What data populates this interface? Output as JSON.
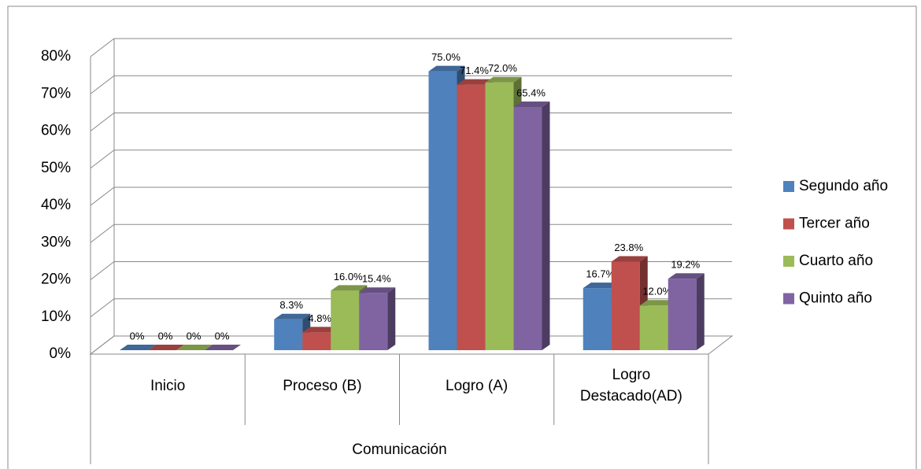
{
  "chart_data": {
    "type": "bar3d",
    "categories": [
      "Inicio",
      "Proceso (B)",
      "Logro (A)",
      "Logro Destacado(AD)"
    ],
    "group_label": "Comunicación",
    "series": [
      {
        "name": "Segundo año",
        "color": "#4f81bd",
        "values": [
          0,
          8.3,
          75.0,
          16.7
        ],
        "value_labels": [
          "0%",
          "8.3%",
          "75.0%",
          "16.7%"
        ]
      },
      {
        "name": "Tercer año",
        "color": "#c0504d",
        "values": [
          0,
          4.8,
          71.4,
          23.8
        ],
        "value_labels": [
          "0%",
          "4.8%",
          "71.4%",
          "23.8%"
        ]
      },
      {
        "name": "Cuarto año",
        "color": "#9bbb59",
        "values": [
          0,
          16.0,
          72.0,
          12.0
        ],
        "value_labels": [
          "0%",
          "16.0%",
          "72.0%",
          "12.0%"
        ]
      },
      {
        "name": "Quinto año",
        "color": "#8064a2",
        "values": [
          0,
          15.4,
          65.4,
          19.2
        ],
        "value_labels": [
          "0%",
          "15.4%",
          "65.4%",
          "19.2%"
        ]
      }
    ],
    "ylim": [
      0,
      80
    ],
    "yticks": [
      {
        "value": 0,
        "label": "0%"
      },
      {
        "value": 10,
        "label": "10%"
      },
      {
        "value": 20,
        "label": "20%"
      },
      {
        "value": 30,
        "label": "30%"
      },
      {
        "value": 40,
        "label": "40%"
      },
      {
        "value": 50,
        "label": "50%"
      },
      {
        "value": 60,
        "label": "60%"
      },
      {
        "value": 70,
        "label": "70%"
      },
      {
        "value": 80,
        "label": "80%"
      }
    ],
    "grid": true,
    "legend": "right"
  }
}
